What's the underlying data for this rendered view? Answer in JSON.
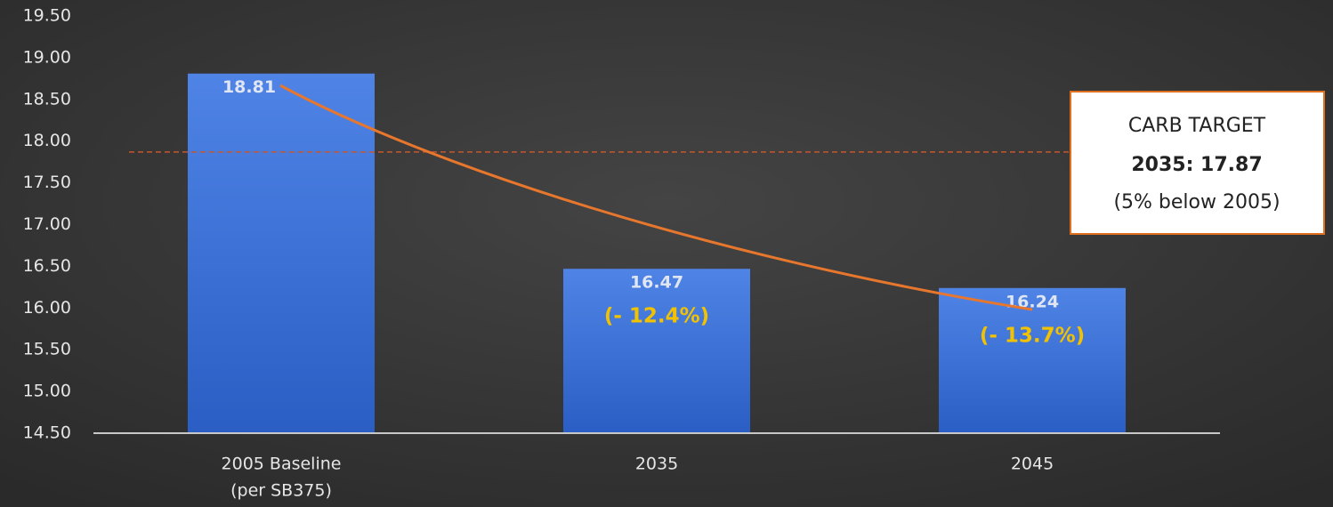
{
  "chart_data": {
    "type": "bar",
    "categories": [
      [
        "2005 Baseline",
        "(per SB375)"
      ],
      [
        "2035"
      ],
      [
        "2045"
      ]
    ],
    "values": [
      18.81,
      16.47,
      16.24
    ],
    "change_labels": [
      null,
      "(- 12.4%)",
      "(- 13.7%)"
    ],
    "color": "#3f72d8",
    "ylim": [
      14.5,
      19.5
    ],
    "yticks": [
      {
        "value": 14.5,
        "label": "14.50"
      },
      {
        "value": 15,
        "label": "15.00"
      },
      {
        "value": 15.5,
        "label": "15.50"
      },
      {
        "value": 16,
        "label": "16.00"
      },
      {
        "value": 16.5,
        "label": "16.50"
      },
      {
        "value": 17,
        "label": "17.00"
      },
      {
        "value": 17.5,
        "label": "17.50"
      },
      {
        "value": 18,
        "label": "18.00"
      },
      {
        "value": 18.5,
        "label": "18.50"
      },
      {
        "value": 19,
        "label": "19.00"
      },
      {
        "value": 19.5,
        "label": "19.50"
      }
    ],
    "grid": false,
    "target": {
      "value": 17.87,
      "lines": [
        "CARB TARGET",
        "2035: 17.87",
        "(5% below 2005)"
      ]
    }
  }
}
